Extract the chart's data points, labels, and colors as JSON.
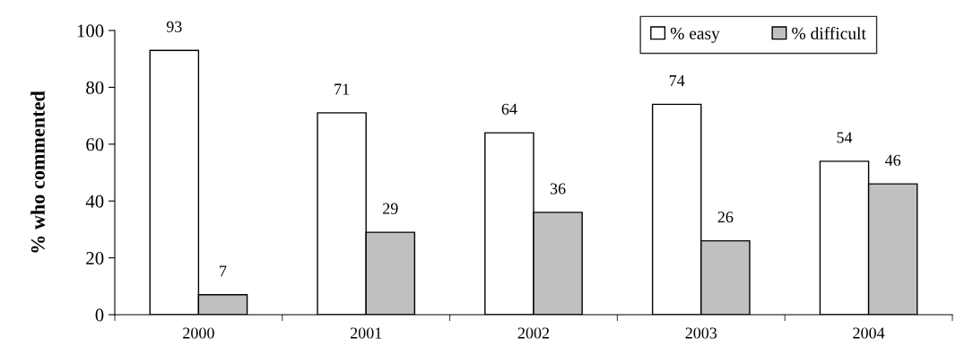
{
  "chart_data": {
    "type": "bar",
    "ylabel": "% who commented",
    "categories": [
      "2000",
      "2001",
      "2002",
      "2003",
      "2004"
    ],
    "series": [
      {
        "name": "% easy",
        "color": "#ffffff",
        "values": [
          93,
          71,
          64,
          74,
          54
        ]
      },
      {
        "name": "% difficult",
        "color": "#c0c0c0",
        "values": [
          7,
          29,
          36,
          26,
          46
        ]
      }
    ],
    "ylim": [
      0,
      100
    ],
    "yticks": [
      0,
      20,
      40,
      60,
      80,
      100
    ],
    "grid": false,
    "legend": "top right",
    "data_labels": true
  }
}
